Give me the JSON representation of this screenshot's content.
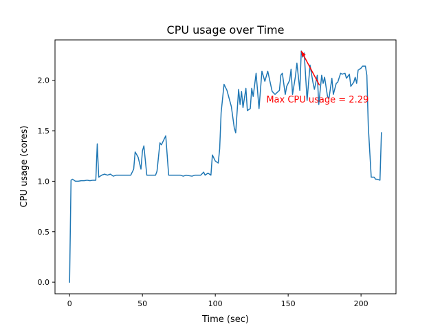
{
  "chart_data": {
    "type": "line",
    "title": "CPU usage over Time",
    "xlabel": "Time (sec)",
    "ylabel": "CPU usage (cores)",
    "xlim": [
      -10,
      224
    ],
    "ylim": [
      -0.115,
      2.4
    ],
    "grid": false,
    "legend": "none",
    "x_ticks": [
      0,
      50,
      100,
      150,
      200
    ],
    "x_tick_labels": [
      "0",
      "50",
      "100",
      "150",
      "200"
    ],
    "y_ticks": [
      0.0,
      0.5,
      1.0,
      1.5,
      2.0
    ],
    "y_tick_labels": [
      "0.0",
      "0.5",
      "1.0",
      "1.5",
      "2.0"
    ],
    "series": [
      {
        "color": "#1f77b4",
        "points": [
          [
            0,
            0.0
          ],
          [
            1,
            1.01
          ],
          [
            2,
            1.02
          ],
          [
            3,
            1.01
          ],
          [
            4,
            1.0
          ],
          [
            6,
            1.0
          ],
          [
            8,
            1.005
          ],
          [
            10,
            1.005
          ],
          [
            12,
            1.01
          ],
          [
            14,
            1.005
          ],
          [
            16,
            1.01
          ],
          [
            18,
            1.01
          ],
          [
            19,
            1.37
          ],
          [
            20,
            1.04
          ],
          [
            22,
            1.06
          ],
          [
            24,
            1.07
          ],
          [
            26,
            1.06
          ],
          [
            28,
            1.07
          ],
          [
            30,
            1.05
          ],
          [
            32,
            1.06
          ],
          [
            36,
            1.06
          ],
          [
            40,
            1.06
          ],
          [
            42,
            1.06
          ],
          [
            44,
            1.12
          ],
          [
            45,
            1.29
          ],
          [
            47,
            1.24
          ],
          [
            49,
            1.12
          ],
          [
            50,
            1.3
          ],
          [
            51,
            1.35
          ],
          [
            53,
            1.06
          ],
          [
            56,
            1.06
          ],
          [
            59,
            1.06
          ],
          [
            60,
            1.1
          ],
          [
            62,
            1.38
          ],
          [
            63,
            1.36
          ],
          [
            65,
            1.42
          ],
          [
            66,
            1.45
          ],
          [
            68,
            1.06
          ],
          [
            72,
            1.06
          ],
          [
            76,
            1.06
          ],
          [
            78,
            1.05
          ],
          [
            80,
            1.06
          ],
          [
            84,
            1.05
          ],
          [
            86,
            1.06
          ],
          [
            90,
            1.06
          ],
          [
            92,
            1.09
          ],
          [
            93,
            1.06
          ],
          [
            95,
            1.08
          ],
          [
            97,
            1.06
          ],
          [
            98,
            1.26
          ],
          [
            100,
            1.2
          ],
          [
            102,
            1.18
          ],
          [
            103,
            1.32
          ],
          [
            104,
            1.68
          ],
          [
            106,
            1.96
          ],
          [
            108,
            1.9
          ],
          [
            111,
            1.74
          ],
          [
            113,
            1.53
          ],
          [
            114,
            1.48
          ],
          [
            116,
            1.91
          ],
          [
            117,
            1.76
          ],
          [
            118,
            1.89
          ],
          [
            119,
            1.73
          ],
          [
            121,
            1.92
          ],
          [
            122,
            1.7
          ],
          [
            124,
            1.72
          ],
          [
            125,
            1.92
          ],
          [
            126,
            1.84
          ],
          [
            128,
            2.07
          ],
          [
            130,
            1.72
          ],
          [
            132,
            2.09
          ],
          [
            134,
            1.99
          ],
          [
            136,
            2.09
          ],
          [
            139,
            1.89
          ],
          [
            141,
            1.86
          ],
          [
            144,
            1.9
          ],
          [
            145,
            2.05
          ],
          [
            146,
            2.07
          ],
          [
            148,
            1.86
          ],
          [
            149,
            1.94
          ],
          [
            151,
            2.0
          ],
          [
            152,
            2.11
          ],
          [
            153,
            1.86
          ],
          [
            155,
            2.04
          ],
          [
            156,
            2.17
          ],
          [
            158,
            1.9
          ],
          [
            159,
            2.29
          ],
          [
            160,
            2.23
          ],
          [
            161,
            2.27
          ],
          [
            163,
            1.8
          ],
          [
            165,
            2.15
          ],
          [
            167,
            1.98
          ],
          [
            168,
            1.91
          ],
          [
            170,
            2.05
          ],
          [
            171,
            1.76
          ],
          [
            173,
            2.05
          ],
          [
            174,
            1.97
          ],
          [
            175,
            2.03
          ],
          [
            177,
            1.84
          ],
          [
            178,
            1.82
          ],
          [
            180,
            2.02
          ],
          [
            181,
            1.86
          ],
          [
            183,
            1.97
          ],
          [
            184,
            1.98
          ],
          [
            186,
            2.07
          ],
          [
            187,
            2.06
          ],
          [
            189,
            2.07
          ],
          [
            190,
            2.02
          ],
          [
            192,
            2.06
          ],
          [
            193,
            1.94
          ],
          [
            195,
            1.98
          ],
          [
            196,
            2.03
          ],
          [
            197,
            1.97
          ],
          [
            198,
            2.1
          ],
          [
            199,
            2.11
          ],
          [
            200,
            2.12
          ],
          [
            201,
            2.14
          ],
          [
            203,
            2.14
          ],
          [
            204,
            2.05
          ],
          [
            205,
            1.54
          ],
          [
            207,
            1.04
          ],
          [
            209,
            1.04
          ],
          [
            210,
            1.02
          ],
          [
            211,
            1.02
          ],
          [
            213,
            1.01
          ],
          [
            214,
            1.48
          ]
        ]
      }
    ],
    "annotations": [
      {
        "text": "Max CPU usage = 2.29",
        "text_xy": [
          135,
          1.78
        ],
        "arrow_from": [
          171.5,
          1.95
        ],
        "arrow_to": [
          159,
          2.29
        ],
        "color": "#ff0000"
      }
    ]
  }
}
